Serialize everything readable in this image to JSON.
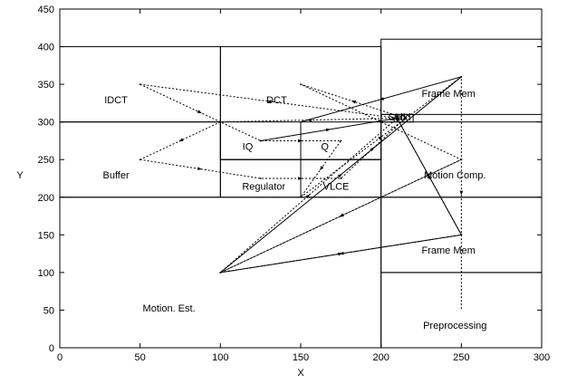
{
  "chart_data": {
    "type": "floorplan-scatter",
    "title": "",
    "xlabel": "X",
    "ylabel": "Y",
    "xlim": [
      0,
      300
    ],
    "ylim": [
      0,
      450
    ],
    "grid": false,
    "xticks": [
      0,
      50,
      100,
      150,
      200,
      250,
      300
    ],
    "yticks": [
      0,
      50,
      100,
      150,
      200,
      250,
      300,
      350,
      400,
      450
    ],
    "blocks": [
      {
        "x0": 0,
        "y0": 200,
        "x1": 100,
        "y1": 300,
        "label": "Buffer",
        "lx": 35,
        "ly": 225
      },
      {
        "x0": 0,
        "y0": 300,
        "x1": 100,
        "y1": 400,
        "label": "IDCT",
        "lx": 35,
        "ly": 325
      },
      {
        "x0": 100,
        "y0": 250,
        "x1": 200,
        "y1": 400,
        "label": "DCT",
        "lx": 135,
        "ly": 325
      },
      {
        "x0": 100,
        "y0": 250,
        "x1": 150,
        "y1": 300,
        "label": "IQ",
        "lx": 117,
        "ly": 263
      },
      {
        "x0": 150,
        "y0": 250,
        "x1": 200,
        "y1": 300,
        "label": "Q",
        "lx": 165,
        "ly": 263
      },
      {
        "x0": 100,
        "y0": 200,
        "x1": 150,
        "y1": 250,
        "label": "Regulator",
        "lx": 127,
        "ly": 210
      },
      {
        "x0": 150,
        "y0": 200,
        "x1": 200,
        "y1": 250,
        "label": "VLCE",
        "lx": 172,
        "ly": 210
      },
      {
        "x0": 200,
        "y0": 310,
        "x1": 300,
        "y1": 410,
        "label": "Frame Mem",
        "lx": 242,
        "ly": 333
      },
      {
        "x0": 200,
        "y0": 300,
        "x1": 210,
        "y1": 310,
        "label": "Sub",
        "lx": 210,
        "ly": 302
      },
      {
        "x0": 210,
        "y0": 300,
        "x1": 220,
        "y1": 310,
        "label": "Add",
        "lx": 213,
        "ly": 302
      },
      {
        "x0": 200,
        "y0": 200,
        "x1": 300,
        "y1": 300,
        "label": "Motion Comp.",
        "lx": 246,
        "ly": 225
      },
      {
        "x0": 200,
        "y0": 100,
        "x1": 300,
        "y1": 200,
        "label": "Frame Mem",
        "lx": 242,
        "ly": 125
      },
      {
        "x0": 200,
        "y0": 0,
        "x1": 300,
        "y1": 100,
        "label": "Preprocessing",
        "lx": 246,
        "ly": 25
      },
      {
        "x0": 0,
        "y0": 0,
        "x1": 200,
        "y1": 200,
        "label": "Motion. Est.",
        "lx": 68,
        "ly": 48
      }
    ],
    "series": [
      {
        "style": "dotted",
        "points": [
          [
            50,
            350
          ],
          [
            125,
            275
          ],
          [
            175,
            275
          ],
          [
            150,
            200
          ],
          [
            250,
            360
          ],
          [
            250,
            50
          ]
        ]
      },
      {
        "style": "dotted",
        "points": [
          [
            50,
            250
          ],
          [
            125,
            225
          ],
          [
            175,
            225
          ],
          [
            215,
            305
          ],
          [
            150,
            350
          ],
          [
            250,
            250
          ],
          [
            100,
            100
          ],
          [
            250,
            150
          ],
          [
            210,
            305
          ],
          [
            50,
            350
          ]
        ]
      },
      {
        "style": "dotted",
        "points": [
          [
            250,
            250
          ],
          [
            100,
            100
          ],
          [
            210,
            305
          ],
          [
            100,
            300
          ],
          [
            50,
            250
          ]
        ]
      },
      {
        "style": "solid",
        "points": [
          [
            125,
            275
          ],
          [
            210,
            305
          ],
          [
            250,
            150
          ],
          [
            100,
            100
          ],
          [
            250,
            360
          ],
          [
            150,
            300
          ]
        ]
      }
    ]
  }
}
